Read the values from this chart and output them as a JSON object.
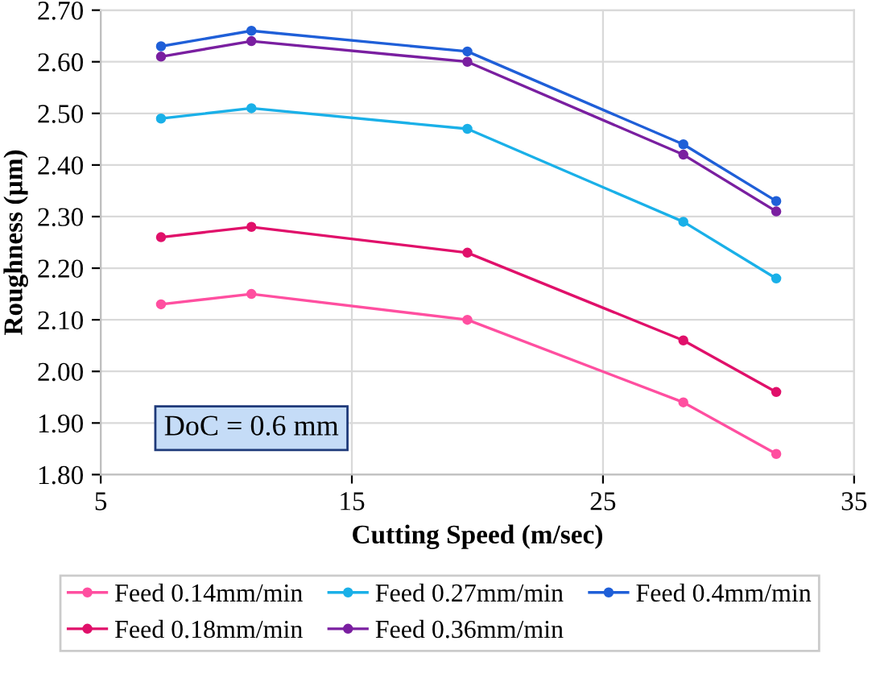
{
  "chart_data": {
    "type": "line",
    "xlabel": "Cutting Speed (m/sec)",
    "ylabel": "Roughness (µm)",
    "x": [
      7.4,
      11.0,
      19.6,
      28.2,
      31.9
    ],
    "series": [
      {
        "name": "Feed 0.14mm/min",
        "color": "#ff4fa0",
        "values": [
          2.13,
          2.15,
          2.1,
          1.94,
          1.84
        ]
      },
      {
        "name": "Feed 0.18mm/min",
        "color": "#e0106a",
        "values": [
          2.26,
          2.28,
          2.23,
          2.06,
          1.96
        ]
      },
      {
        "name": "Feed 0.27mm/min",
        "color": "#1ab0e8",
        "values": [
          2.49,
          2.51,
          2.47,
          2.29,
          2.18
        ]
      },
      {
        "name": "Feed 0.36mm/min",
        "color": "#7a1fa0",
        "values": [
          2.61,
          2.64,
          2.6,
          2.42,
          2.31
        ]
      },
      {
        "name": "Feed 0.4mm/min",
        "color": "#1f5fd8",
        "values": [
          2.63,
          2.66,
          2.62,
          2.44,
          2.33
        ]
      }
    ],
    "xlim": [
      5,
      35
    ],
    "xticks": [
      5,
      15,
      25,
      35
    ],
    "ylim": [
      1.8,
      2.7
    ],
    "yticks": [
      {
        "value": 1.8,
        "label": "1.80"
      },
      {
        "value": 1.9,
        "label": "1.90"
      },
      {
        "value": 2.0,
        "label": "2.00"
      },
      {
        "value": 2.1,
        "label": "2.10"
      },
      {
        "value": 2.2,
        "label": "2.20"
      },
      {
        "value": 2.3,
        "label": "2.30"
      },
      {
        "value": 2.4,
        "label": "2.40"
      },
      {
        "value": 2.5,
        "label": "2.50"
      },
      {
        "value": 2.6,
        "label": "2.60"
      },
      {
        "value": 2.7,
        "label": "2.70"
      }
    ],
    "annotations": [
      "DoC = 0.6 mm"
    ],
    "grid": true,
    "legend": "bottom",
    "marker": "circle",
    "line_style": "solid"
  }
}
